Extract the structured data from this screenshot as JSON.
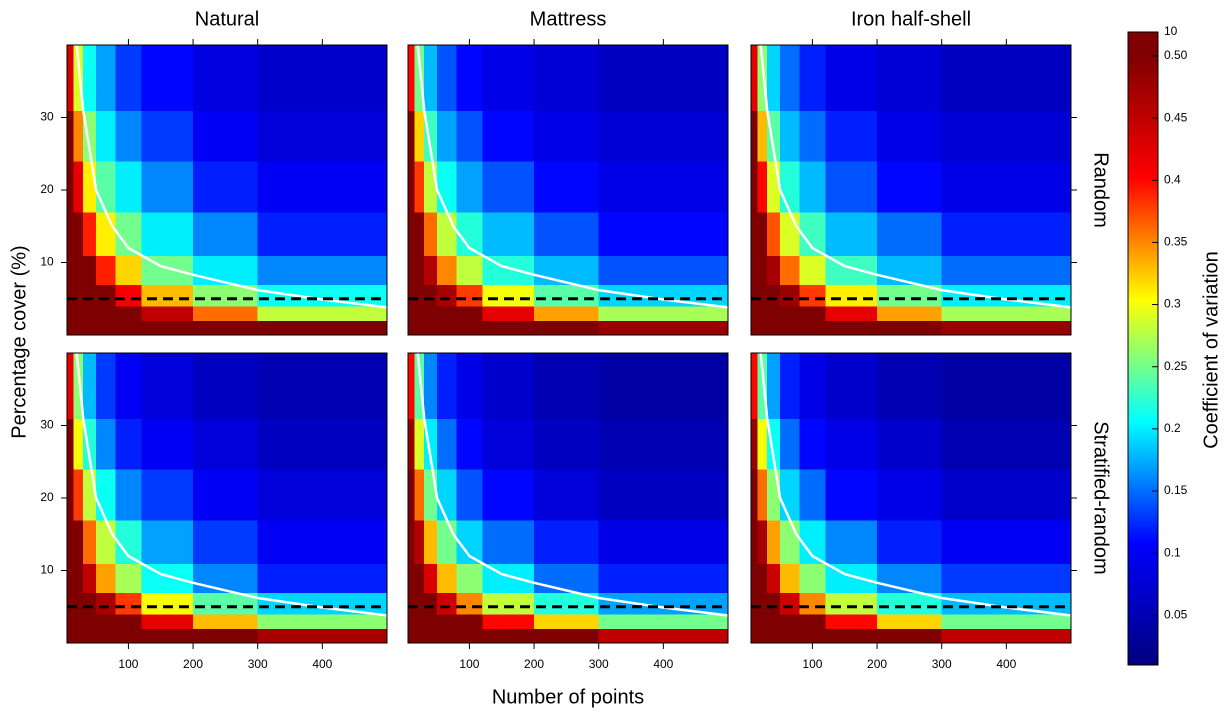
{
  "chart_data": {
    "type": "heatmap",
    "columns": [
      "Natural",
      "Mattress",
      "Iron half-shell"
    ],
    "rows": [
      "Random",
      "Stratified-random"
    ],
    "x_label": "Number of points",
    "y_label": "Percentage cover (%)",
    "xlim": [
      5,
      500
    ],
    "ylim": [
      0,
      40
    ],
    "xticks": [
      100,
      200,
      300,
      400
    ],
    "yticks": [
      10,
      20,
      30
    ],
    "x_edges": [
      5,
      15,
      30,
      50,
      80,
      120,
      200,
      300,
      500
    ],
    "y_edges": [
      0,
      2,
      4,
      7,
      11,
      17,
      24,
      31,
      40
    ],
    "panels": [
      [
        [
          [
            3.15,
            2.12,
            1.57,
            1.23,
            0.99,
            0.79,
            0.63,
            0.5
          ],
          [
            1.8,
            1.21,
            0.9,
            0.7,
            0.57,
            0.45,
            0.36,
            0.28
          ],
          [
            1.31,
            0.88,
            0.66,
            0.51,
            0.41,
            0.33,
            0.26,
            0.21
          ],
          [
            1.01,
            0.68,
            0.5,
            0.39,
            0.32,
            0.25,
            0.2,
            0.16
          ],
          [
            0.78,
            0.53,
            0.39,
            0.31,
            0.25,
            0.2,
            0.16,
            0.12
          ],
          [
            0.62,
            0.42,
            0.31,
            0.24,
            0.2,
            0.16,
            0.12,
            0.1
          ],
          [
            0.51,
            0.35,
            0.26,
            0.2,
            0.16,
            0.13,
            0.1,
            0.08
          ],
          [
            0.43,
            0.29,
            0.21,
            0.17,
            0.13,
            0.11,
            0.085,
            0.07
          ]
        ],
        [
          [
            3.0,
            2.0,
            1.5,
            1.2,
            0.95,
            0.75,
            0.6,
            0.48
          ],
          [
            1.7,
            1.15,
            0.85,
            0.66,
            0.53,
            0.42,
            0.34,
            0.27
          ],
          [
            1.25,
            0.82,
            0.6,
            0.47,
            0.38,
            0.3,
            0.24,
            0.19
          ],
          [
            0.95,
            0.62,
            0.46,
            0.35,
            0.28,
            0.22,
            0.18,
            0.14
          ],
          [
            0.75,
            0.5,
            0.36,
            0.28,
            0.22,
            0.18,
            0.14,
            0.11
          ],
          [
            0.6,
            0.38,
            0.28,
            0.21,
            0.17,
            0.14,
            0.11,
            0.09
          ],
          [
            0.5,
            0.32,
            0.23,
            0.17,
            0.14,
            0.11,
            0.09,
            0.075
          ],
          [
            0.4,
            0.25,
            0.18,
            0.14,
            0.11,
            0.09,
            0.075,
            0.06
          ]
        ],
        [
          [
            3.0,
            2.0,
            1.5,
            1.2,
            0.95,
            0.75,
            0.6,
            0.48
          ],
          [
            1.7,
            1.15,
            0.85,
            0.66,
            0.53,
            0.42,
            0.34,
            0.27
          ],
          [
            1.25,
            0.84,
            0.62,
            0.48,
            0.38,
            0.31,
            0.25,
            0.2
          ],
          [
            0.96,
            0.64,
            0.47,
            0.36,
            0.29,
            0.23,
            0.18,
            0.15
          ],
          [
            0.75,
            0.5,
            0.37,
            0.29,
            0.23,
            0.18,
            0.15,
            0.12
          ],
          [
            0.6,
            0.4,
            0.29,
            0.22,
            0.18,
            0.14,
            0.11,
            0.09
          ],
          [
            0.5,
            0.33,
            0.24,
            0.18,
            0.15,
            0.12,
            0.09,
            0.075
          ],
          [
            0.42,
            0.26,
            0.19,
            0.15,
            0.12,
            0.09,
            0.075,
            0.06
          ]
        ]
      ],
      [
        [
          [
            3.1,
            2.05,
            1.5,
            1.18,
            0.95,
            0.76,
            0.6,
            0.47
          ],
          [
            1.75,
            1.15,
            0.85,
            0.66,
            0.53,
            0.42,
            0.33,
            0.26
          ],
          [
            1.28,
            0.84,
            0.62,
            0.47,
            0.38,
            0.3,
            0.24,
            0.19
          ],
          [
            0.98,
            0.6,
            0.45,
            0.34,
            0.27,
            0.21,
            0.16,
            0.12
          ],
          [
            0.76,
            0.5,
            0.36,
            0.28,
            0.22,
            0.17,
            0.13,
            0.1
          ],
          [
            0.6,
            0.38,
            0.28,
            0.21,
            0.16,
            0.13,
            0.1,
            0.08
          ],
          [
            0.5,
            0.3,
            0.22,
            0.16,
            0.12,
            0.1,
            0.08,
            0.06
          ],
          [
            0.42,
            0.26,
            0.18,
            0.13,
            0.1,
            0.08,
            0.06,
            0.05
          ]
        ],
        [
          [
            3.0,
            2.0,
            1.45,
            1.15,
            0.92,
            0.72,
            0.58,
            0.45
          ],
          [
            1.7,
            1.1,
            0.82,
            0.63,
            0.5,
            0.4,
            0.32,
            0.25
          ],
          [
            1.22,
            0.8,
            0.58,
            0.44,
            0.35,
            0.28,
            0.22,
            0.17
          ],
          [
            0.92,
            0.6,
            0.43,
            0.33,
            0.26,
            0.2,
            0.15,
            0.12
          ],
          [
            0.72,
            0.46,
            0.33,
            0.25,
            0.19,
            0.15,
            0.12,
            0.09
          ],
          [
            0.58,
            0.36,
            0.25,
            0.19,
            0.14,
            0.11,
            0.08,
            0.06
          ],
          [
            0.48,
            0.29,
            0.2,
            0.15,
            0.11,
            0.08,
            0.06,
            0.05
          ],
          [
            0.4,
            0.24,
            0.16,
            0.12,
            0.09,
            0.07,
            0.05,
            0.04
          ]
        ],
        [
          [
            3.0,
            2.0,
            1.45,
            1.15,
            0.92,
            0.72,
            0.58,
            0.45
          ],
          [
            1.7,
            1.1,
            0.82,
            0.63,
            0.5,
            0.4,
            0.32,
            0.25
          ],
          [
            1.22,
            0.8,
            0.58,
            0.44,
            0.35,
            0.28,
            0.22,
            0.18
          ],
          [
            0.92,
            0.6,
            0.44,
            0.33,
            0.26,
            0.2,
            0.16,
            0.13
          ],
          [
            0.72,
            0.47,
            0.34,
            0.26,
            0.2,
            0.16,
            0.12,
            0.1
          ],
          [
            0.58,
            0.36,
            0.26,
            0.19,
            0.15,
            0.11,
            0.09,
            0.07
          ],
          [
            0.48,
            0.3,
            0.21,
            0.15,
            0.11,
            0.09,
            0.07,
            0.05
          ],
          [
            0.4,
            0.24,
            0.17,
            0.12,
            0.09,
            0.07,
            0.05,
            0.04
          ]
        ]
      ]
    ],
    "reference_curve": {
      "x": [
        20,
        30,
        50,
        75,
        100,
        150,
        200,
        300,
        400,
        500
      ],
      "y": [
        40,
        31,
        20,
        15,
        12,
        9.5,
        8.3,
        6.2,
        4.9,
        3.8
      ]
    },
    "dashed_line_y": 5,
    "colormap": [
      "#00007f",
      "#0000ff",
      "#00ffff",
      "#ffff00",
      "#ff0000",
      "#7f0000"
    ],
    "colorbar": {
      "label": "Coefficient of variation",
      "lim": [
        0.01,
        0.5
      ],
      "ticks": [
        0.05,
        0.1,
        0.15,
        0.2,
        0.25,
        0.3,
        0.35,
        0.4,
        0.45,
        {
          "value": 0.5,
          "label": "0.50"
        }
      ],
      "top": 10
    }
  }
}
